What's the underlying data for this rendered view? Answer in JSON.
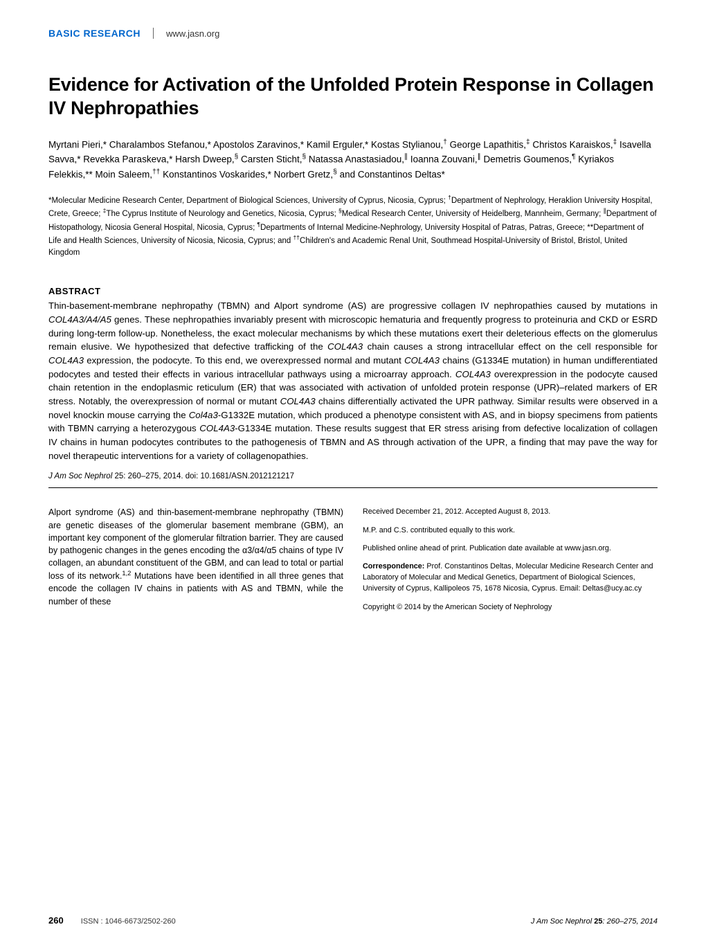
{
  "header": {
    "section_label": "BASIC RESEARCH",
    "website": "www.jasn.org",
    "section_color": "#0066cc"
  },
  "title": "Evidence for Activation of the Unfolded Protein Response in Collagen IV Nephropathies",
  "authors_html": "Myrtani Pieri,* Charalambos Stefanou,* Apostolos Zaravinos,* Kamil Erguler,* Kostas Stylianou,<sup>†</sup> George Lapathitis,<sup>‡</sup> Christos Karaiskos,<sup>‡</sup> Isavella Savva,* Revekka Paraskeva,* Harsh Dweep,<sup>§</sup> Carsten Sticht,<sup>§</sup> Natassa Anastasiadou,<sup>∥</sup> Ioanna Zouvani,<sup>∥</sup> Demetris Goumenos,<sup>¶</sup> Kyriakos Felekkis,** Moin Saleem,<sup>††</sup> Konstantinos Voskarides,* Norbert Gretz,<sup>§</sup> and Constantinos Deltas*",
  "affiliations_html": "*Molecular Medicine Research Center, Department of Biological Sciences, University of Cyprus, Nicosia, Cyprus; <sup>†</sup>Department of Nephrology, Heraklion University Hospital, Crete, Greece; <sup>‡</sup>The Cyprus Institute of Neurology and Genetics, Nicosia, Cyprus; <sup>§</sup>Medical Research Center, University of Heidelberg, Mannheim, Germany; <sup>∥</sup>Department of Histopathology, Nicosia General Hospital, Nicosia, Cyprus; <sup>¶</sup>Departments of Internal Medicine-Nephrology, University Hospital of Patras, Patras, Greece; **Department of Life and Health Sciences, University of Nicosia, Nicosia, Cyprus; and <sup>††</sup>Children's and Academic Renal Unit, Southmead Hospital-University of Bristol, Bristol, United Kingdom",
  "abstract": {
    "heading": "ABSTRACT",
    "text_html": "Thin-basement-membrane nephropathy (TBMN) and Alport syndrome (AS) are progressive collagen IV nephropathies caused by mutations in <i>COL4A3/A4/A5</i> genes. These nephropathies invariably present with microscopic hematuria and frequently progress to proteinuria and CKD or ESRD during long-term follow-up. Nonetheless, the exact molecular mechanisms by which these mutations exert their deleterious effects on the glomerulus remain elusive. We hypothesized that defective trafficking of the <i>COL4A3</i> chain causes a strong intracellular effect on the cell responsible for <i>COL4A3</i> expression, the podocyte. To this end, we overexpressed normal and mutant <i>COL4A3</i> chains (G1334E mutation) in human undifferentiated podocytes and tested their effects in various intracellular pathways using a microarray approach. <i>COL4A3</i> overexpression in the podocyte caused chain retention in the endoplasmic reticulum (ER) that was associated with activation of unfolded protein response (UPR)–related markers of ER stress. Notably, the overexpression of normal or mutant <i>COL4A3</i> chains differentially activated the UPR pathway. Similar results were observed in a novel knockin mouse carrying the <i>Col4a3</i>-G1332E mutation, which produced a phenotype consistent with AS, and in biopsy specimens from patients with TBMN carrying a heterozygous <i>COL4A3</i>-G1334E mutation. These results suggest that ER stress arising from defective localization of collagen IV chains in human podocytes contributes to the pathogenesis of TBMN and AS through activation of the UPR, a finding that may pave the way for novel therapeutic interventions for a variety of collagenopathies."
  },
  "citation": {
    "journal": "J Am Soc Nephrol",
    "rest": " 25: 260–275, 2014. doi: 10.1681/ASN.2012121217"
  },
  "body_left_html": "Alport syndrome (AS) and thin-basement-membrane nephropathy (TBMN) are genetic diseases of the glomerular basement membrane (GBM), an important key component of the glomerular filtration barrier. They are caused by pathogenic changes in the genes encoding the α3/α4/α5 chains of type IV collagen, an abundant constituent of the GBM, and can lead to total or partial loss of its network.<sup>1,2</sup> Mutations have been identified in all three genes that encode the collagen IV chains in patients with AS and TBMN, while the number of these",
  "body_right": {
    "received": "Received December 21, 2012. Accepted August 8, 2013.",
    "contrib": "M.P. and C.S. contributed equally to this work.",
    "pub": "Published online ahead of print. Publication date available at www.jasn.org.",
    "correspondence_html": "<span class=\"bold\">Correspondence:</span> Prof. Constantinos Deltas, Molecular Medicine Research Center and Laboratory of Molecular and Medical Genetics, Department of Biological Sciences, University of Cyprus, Kallipoleos 75, 1678 Nicosia, Cyprus. Email: Deltas@ucy.ac.cy",
    "copyright": "Copyright © 2014 by the American Society of Nephrology"
  },
  "footer": {
    "page": "260",
    "issn": "ISSN : 1046-6673/2502-260",
    "journal": "J Am Soc Nephrol",
    "vol": "25",
    "pages_year": ": 260–275, 2014"
  },
  "fonts": {
    "title_size_pt": 20,
    "body_size_pt": 10,
    "abstract_size_pt": 10,
    "footer_size_pt": 8
  },
  "colors": {
    "text": "#000000",
    "background": "#ffffff",
    "section_label": "#0066cc",
    "rule": "#000000"
  }
}
